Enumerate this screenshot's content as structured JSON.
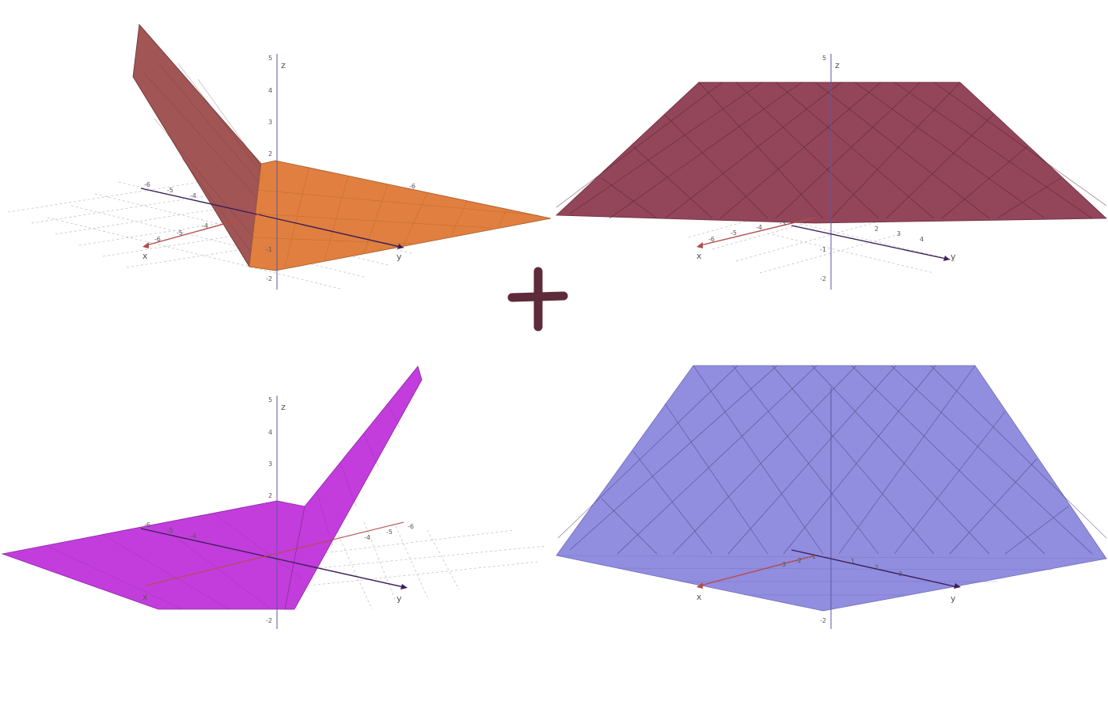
{
  "panels": [
    {
      "id": "top-left",
      "surface_color": "#e07f3f",
      "wall_color": "#a15555",
      "z_ticks": [
        "5",
        "4",
        "3",
        "2",
        "-1",
        "-2"
      ],
      "x_ticks": [
        "-6",
        "-5",
        "-4",
        "-3",
        "-2",
        "-1"
      ],
      "y_ticks": [
        "-6",
        "-5",
        "-4",
        "-3"
      ],
      "axis_labels": {
        "x": "x",
        "y": "y",
        "z": "z"
      }
    },
    {
      "id": "top-right",
      "surface_color": "#93455a",
      "wall_color": "#93455a",
      "z_ticks": [
        "5",
        "-1",
        "-2"
      ],
      "x_ticks": [
        "-6",
        "-5",
        "-4",
        "-3",
        "-2",
        "-1"
      ],
      "y_ticks": [
        "1",
        "2",
        "3",
        "4",
        "5"
      ],
      "axis_labels": {
        "x": "x",
        "y": "y",
        "z": "z"
      }
    },
    {
      "id": "bottom-left",
      "surface_color": "#c23ddc",
      "wall_color": "#c23ddc",
      "z_ticks": [
        "5",
        "4",
        "3",
        "2",
        "-2"
      ],
      "x_ticks": [
        "-6",
        "-5",
        "-4",
        "-3",
        "-2",
        "-1"
      ],
      "y_ticks": [
        "-6",
        "-5",
        "-4",
        "-3"
      ],
      "axis_labels": {
        "x": "x",
        "y": "y",
        "z": "z"
      }
    },
    {
      "id": "bottom-right",
      "surface_color": "#8c87de",
      "wall_color": "#8c87de",
      "z_ticks": [
        "-2"
      ],
      "x_ticks": [
        "-3",
        "-2",
        "-1"
      ],
      "y_ticks": [
        "1",
        "2",
        "3"
      ],
      "axis_labels": {
        "x": "x",
        "y": "y",
        "z": ""
      }
    }
  ],
  "operator": {
    "symbol": "plus",
    "color": "#5e2b3a"
  },
  "colors": {
    "x_axis": "#b44c4c",
    "y_axis": "#3c1f5a",
    "z_axis": "#5a5aa0",
    "grid": "#b8b8b8"
  }
}
